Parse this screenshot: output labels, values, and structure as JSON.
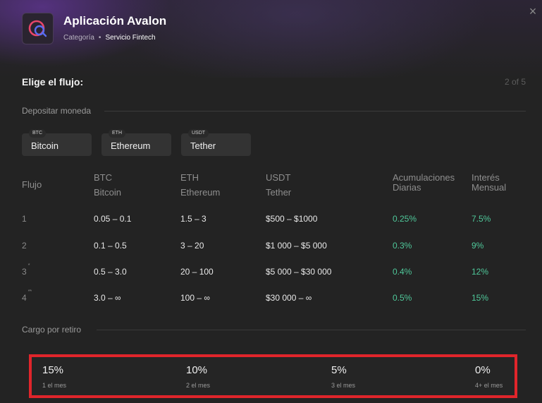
{
  "app": {
    "title": "Aplicación Avalon",
    "category": "Categoría",
    "separator": "•",
    "service": "Servicio Fintech"
  },
  "flow": {
    "title": "Elige el flujo:",
    "step": "2 of 5"
  },
  "deposit": {
    "label": "Depositar moneda",
    "coins": [
      {
        "tag": "BTC",
        "name": "Bitcoin"
      },
      {
        "tag": "ETH",
        "name": "Ethereum"
      },
      {
        "tag": "USDT",
        "name": "Tether"
      }
    ]
  },
  "table": {
    "headers": {
      "flujo": "Flujo",
      "btc_code": "BTC",
      "btc_name": "Bitcoin",
      "eth_code": "ETH",
      "eth_name": "Ethereum",
      "usdt_code": "USDT",
      "usdt_name": "Tether",
      "acc_1": "Acumulaciones",
      "acc_2": "Diarias",
      "int_1": "Interés",
      "int_2": "Mensual"
    },
    "rows": [
      {
        "flujo": "1",
        "mark": "",
        "btc": "0.05 – 0.1",
        "eth": "1.5 – 3",
        "usdt": "$500 – $1000",
        "daily": "0.25%",
        "monthly": "7.5%"
      },
      {
        "flujo": "2",
        "mark": "",
        "btc": "0.1 – 0.5",
        "eth": "3 – 20",
        "usdt": "$1 000 – $5 000",
        "daily": "0.3%",
        "monthly": "9%"
      },
      {
        "flujo": "3",
        "mark": "*",
        "btc": "0.5 – 3.0",
        "eth": "20 – 100",
        "usdt": "$5 000 – $30 000",
        "daily": "0.4%",
        "monthly": "12%"
      },
      {
        "flujo": "4",
        "mark": "**",
        "btc": "3.0 – ∞",
        "eth": "100 – ∞",
        "usdt": "$30 000 – ∞",
        "daily": "0.5%",
        "monthly": "15%"
      }
    ]
  },
  "withdrawal": {
    "label": "Cargo por retiro",
    "fees": [
      {
        "pct": "15%",
        "period": "1 el mes"
      },
      {
        "pct": "10%",
        "period": "2 el mes"
      },
      {
        "pct": "5%",
        "period": "3 el mes"
      },
      {
        "pct": "0%",
        "period": "4+ el mes"
      }
    ]
  },
  "colors": {
    "accent_green": "#4fc89a",
    "highlight_red": "#e0252b",
    "brand_pink": "#e8466a",
    "brand_blue": "#5a6cf0"
  },
  "icons": {
    "close": "close-icon",
    "logo": "avalon-logo-icon"
  }
}
